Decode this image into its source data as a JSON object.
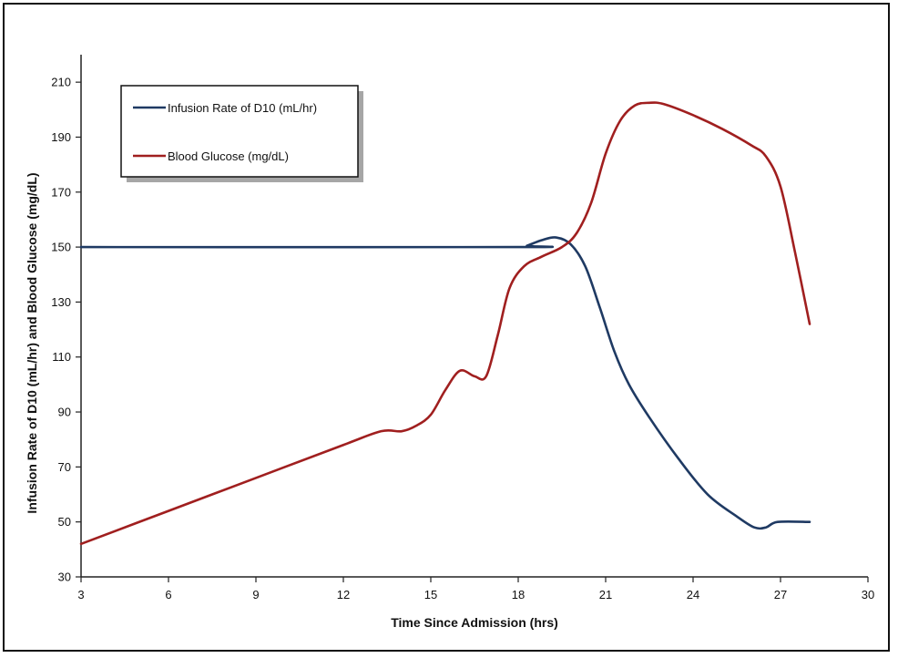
{
  "chart_data": {
    "type": "line",
    "xlabel": "Time Since Admission (hrs)",
    "ylabel": "Infusion Rate of D10 (mL/hr) and Blood Glucose (mg/dL)",
    "xlim": [
      3,
      30
    ],
    "ylim": [
      30,
      220
    ],
    "x_ticks": [
      3,
      6,
      9,
      12,
      15,
      18,
      21,
      24,
      27,
      30
    ],
    "y_ticks": [
      30,
      50,
      70,
      90,
      110,
      130,
      150,
      170,
      190,
      210
    ],
    "legend_position": "top-left",
    "grid": false,
    "series": [
      {
        "name": "Infusion Rate of D10 (mL/hr)",
        "color": "#1f3a63",
        "points": [
          [
            3,
            150
          ],
          [
            18,
            150
          ],
          [
            18.3,
            150.5
          ],
          [
            18.8,
            152.5
          ],
          [
            19.3,
            153.5
          ],
          [
            19.8,
            151
          ],
          [
            20.3,
            143
          ],
          [
            20.8,
            128
          ],
          [
            21.3,
            112
          ],
          [
            21.8,
            100
          ],
          [
            22.5,
            88
          ],
          [
            23.5,
            73
          ],
          [
            24.5,
            60
          ],
          [
            25.5,
            52
          ],
          [
            26.1,
            48
          ],
          [
            26.5,
            48
          ],
          [
            26.9,
            50
          ],
          [
            28,
            50
          ]
        ]
      },
      {
        "name": "Blood Glucose (mg/dL)",
        "color": "#a01f1f",
        "points": [
          [
            3,
            42
          ],
          [
            6,
            54
          ],
          [
            9,
            66
          ],
          [
            12,
            78
          ],
          [
            13.3,
            83
          ],
          [
            14,
            83
          ],
          [
            14.5,
            85
          ],
          [
            15,
            89
          ],
          [
            15.5,
            98
          ],
          [
            16,
            105
          ],
          [
            16.5,
            103
          ],
          [
            16.9,
            103
          ],
          [
            17.3,
            118
          ],
          [
            17.7,
            135
          ],
          [
            18.2,
            143
          ],
          [
            18.8,
            146.5
          ],
          [
            19.5,
            150
          ],
          [
            20,
            155
          ],
          [
            20.5,
            166
          ],
          [
            21,
            184
          ],
          [
            21.5,
            196
          ],
          [
            22,
            201.5
          ],
          [
            22.5,
            202.5
          ],
          [
            23,
            202
          ],
          [
            24,
            198
          ],
          [
            25,
            193
          ],
          [
            26,
            187
          ],
          [
            26.5,
            183
          ],
          [
            27,
            172
          ],
          [
            27.5,
            148
          ],
          [
            28,
            122
          ]
        ]
      }
    ]
  }
}
